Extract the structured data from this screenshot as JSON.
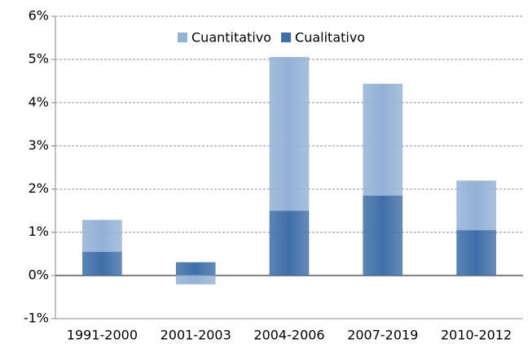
{
  "chart_data": {
    "type": "stacked-bar",
    "categories": [
      "1991-2000",
      "2001-2003",
      "2004-2006",
      "2007-2019",
      "2010-2012"
    ],
    "series": [
      {
        "name": "Cualitativo",
        "color": "#3f6fa8",
        "values": [
          0.55,
          0.3,
          1.5,
          1.85,
          1.05
        ]
      },
      {
        "name": "Cuantitativo",
        "color": "#93b1d6",
        "values": [
          0.73,
          -0.2,
          3.55,
          2.58,
          1.14
        ]
      }
    ],
    "ylim": [
      -1,
      6
    ],
    "yticks": [
      {
        "value": -1,
        "label": "-1%"
      },
      {
        "value": 0,
        "label": "0%"
      },
      {
        "value": 1,
        "label": "1%"
      },
      {
        "value": 2,
        "label": "2%"
      },
      {
        "value": 3,
        "label": "3%"
      },
      {
        "value": 4,
        "label": "4%"
      },
      {
        "value": 5,
        "label": "5%"
      },
      {
        "value": 6,
        "label": "6%"
      }
    ],
    "grid": true,
    "legend": "top"
  }
}
